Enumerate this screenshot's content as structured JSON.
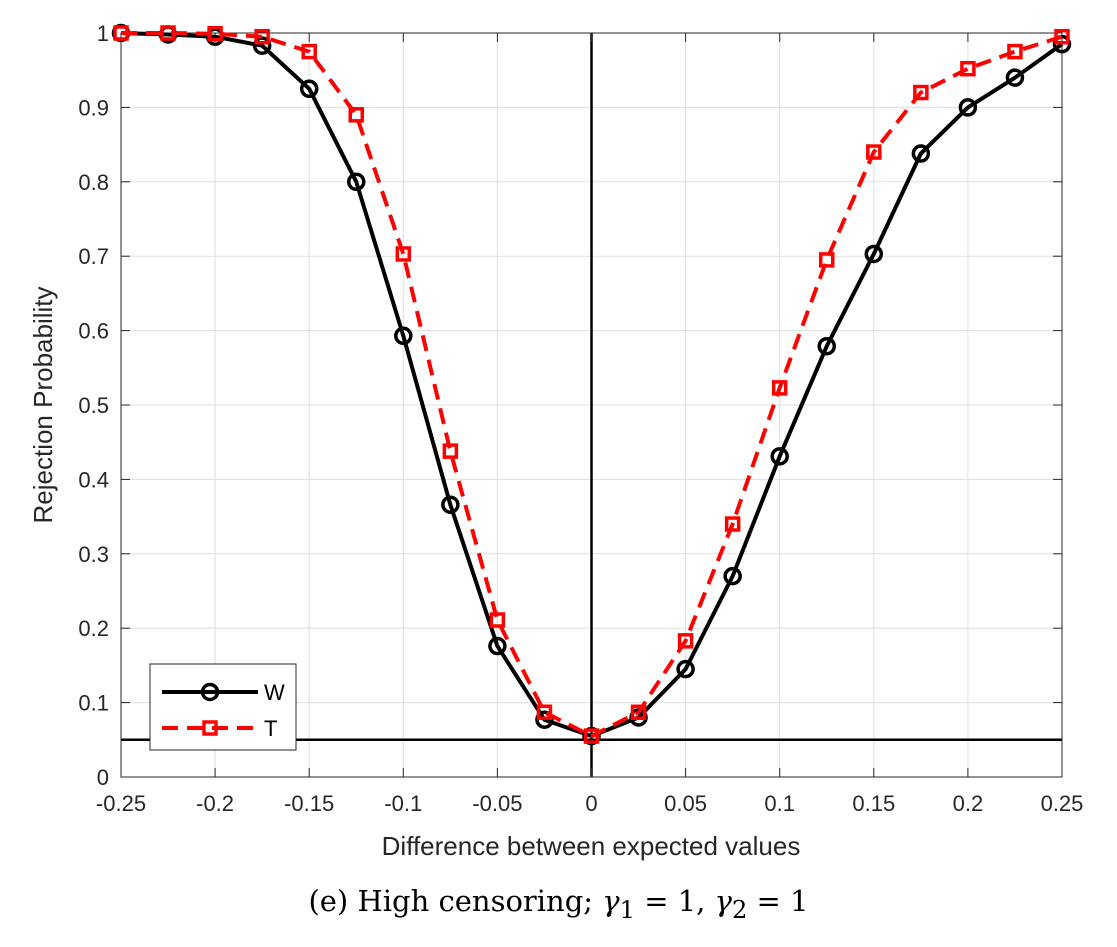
{
  "caption": {
    "prefix": "(e) High censoring; ",
    "g1": "γ",
    "sub1": "1",
    "eq1": " = 1, ",
    "g2": "γ",
    "sub2": "2",
    "eq2": " = 1"
  },
  "chart_data": {
    "type": "line",
    "title": "",
    "xlabel": "Difference between expected values",
    "ylabel": "Rejection Probability",
    "xlim": [
      -0.25,
      0.25
    ],
    "ylim": [
      0,
      1
    ],
    "xticks": [
      -0.25,
      -0.2,
      -0.15,
      -0.1,
      -0.05,
      0,
      0.05,
      0.1,
      0.15,
      0.2,
      0.25
    ],
    "xtick_labels": [
      "-0.25",
      "-0.2",
      "-0.15",
      "-0.1",
      "-0.05",
      "0",
      "0.05",
      "0.1",
      "0.15",
      "0.2",
      "0.25"
    ],
    "yticks": [
      0,
      0.1,
      0.2,
      0.3,
      0.4,
      0.5,
      0.6,
      0.7,
      0.8,
      0.9,
      1
    ],
    "ytick_labels": [
      "0",
      "0.1",
      "0.2",
      "0.3",
      "0.4",
      "0.5",
      "0.6",
      "0.7",
      "0.8",
      "0.9",
      "1"
    ],
    "grid": true,
    "legend_position": "bottom-left",
    "reference_lines": {
      "vertical_x": 0,
      "horizontal_y": 0.05
    },
    "x": [
      -0.25,
      -0.225,
      -0.2,
      -0.175,
      -0.15,
      -0.125,
      -0.1,
      -0.075,
      -0.05,
      -0.025,
      0,
      0.025,
      0.05,
      0.075,
      0.1,
      0.125,
      0.15,
      0.175,
      0.2,
      0.225,
      0.25
    ],
    "series": [
      {
        "name": "W",
        "color": "#000000",
        "line_style": "solid",
        "marker": "circle",
        "values": [
          1.0,
          0.998,
          0.995,
          0.983,
          0.925,
          0.8,
          0.593,
          0.366,
          0.176,
          0.077,
          0.055,
          0.08,
          0.145,
          0.27,
          0.431,
          0.579,
          0.703,
          0.838,
          0.9,
          0.94,
          0.985
        ]
      },
      {
        "name": "T",
        "color": "#ff0000",
        "line_style": "dashed",
        "marker": "square",
        "values": [
          1.0,
          1.0,
          0.999,
          0.995,
          0.975,
          0.89,
          0.703,
          0.438,
          0.211,
          0.087,
          0.055,
          0.087,
          0.183,
          0.34,
          0.523,
          0.695,
          0.84,
          0.92,
          0.952,
          0.975,
          0.995
        ]
      }
    ]
  }
}
